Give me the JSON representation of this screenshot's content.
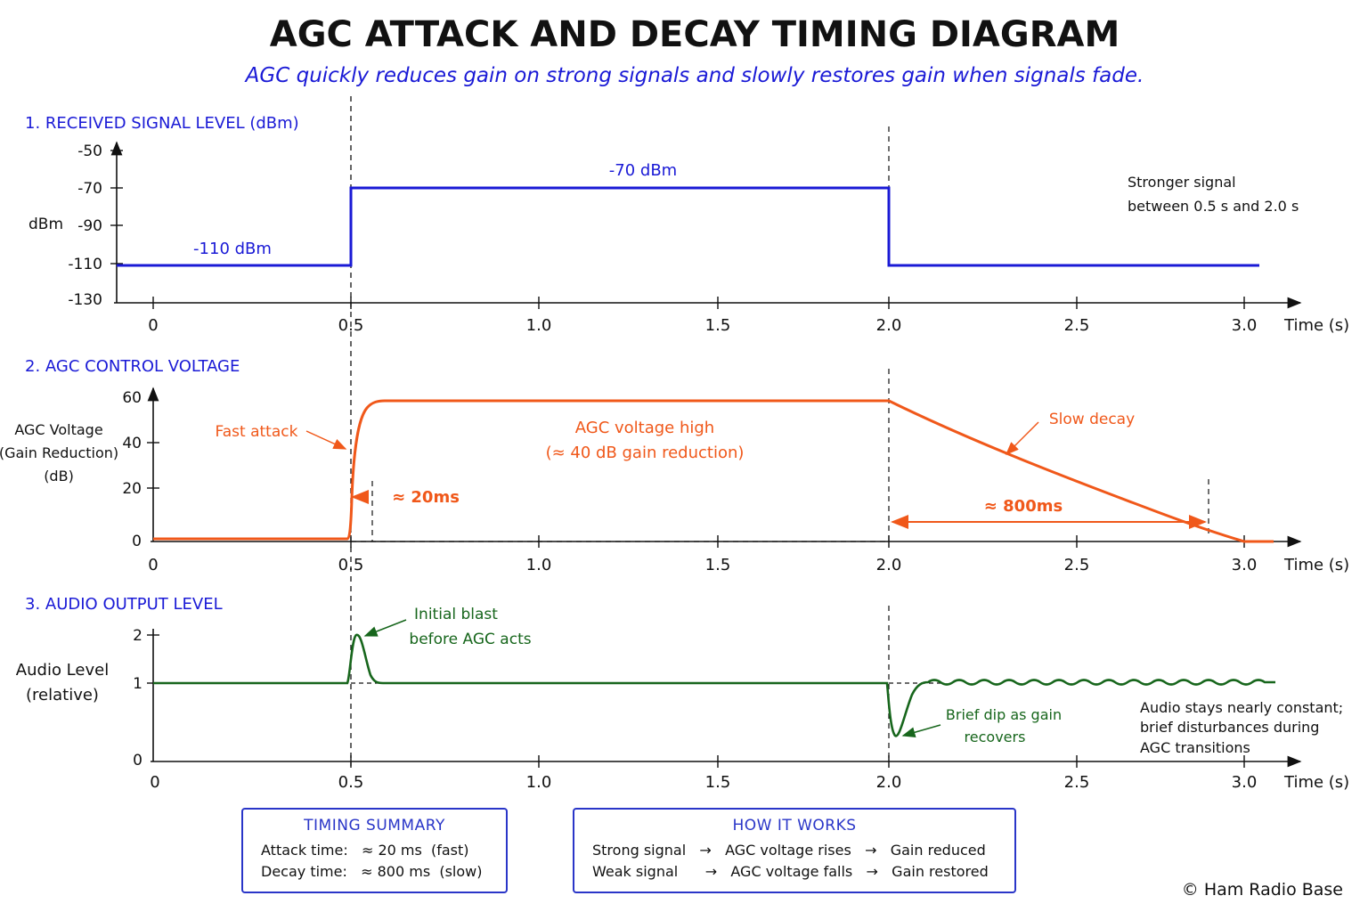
{
  "title": "AGC ATTACK AND DECAY TIMING DIAGRAM",
  "subtitle": "AGC quickly reduces gain on strong signals and slowly restores gain when signals fade.",
  "colors": {
    "blue": "#1a1ad6",
    "orange": "#f0581a",
    "green": "#17661c",
    "axis": "#111111"
  },
  "time_axis": {
    "ticks": [
      "0",
      "0.5",
      "1.0",
      "1.5",
      "2.0",
      "2.5",
      "3.0"
    ],
    "label": "Time (s)"
  },
  "panel1": {
    "heading": "1. RECEIVED SIGNAL LEVEL (dBm)",
    "ylabel": "dBm",
    "yticks": [
      "-50",
      "-70",
      "-90",
      "-110",
      "-130"
    ],
    "low_label": "-110 dBm",
    "high_label": "-70 dBm",
    "note_line1": "Stronger signal",
    "note_line2": "between 0.5 s and 2.0 s"
  },
  "panel2": {
    "heading": "2. AGC CONTROL VOLTAGE",
    "ylabel_line1": "AGC Voltage",
    "ylabel_line2": "(Gain Reduction)",
    "ylabel_line3": "(dB)",
    "yticks": [
      "60",
      "40",
      "20",
      "0"
    ],
    "fast_attack": "Fast attack",
    "high_line1": "AGC voltage high",
    "high_line2": "(≈ 40 dB gain reduction)",
    "attack_time": "≈ 20ms",
    "slow_decay": "Slow decay",
    "decay_time": "≈ 800ms"
  },
  "panel3": {
    "heading": "3. AUDIO OUTPUT LEVEL",
    "ylabel_line1": "Audio Level",
    "ylabel_line2": "(relative)",
    "yticks": [
      "2",
      "1",
      "0"
    ],
    "blast_line1": "Initial blast",
    "blast_line2": "before AGC acts",
    "dip_line1": "Brief dip as gain",
    "dip_line2": "recovers",
    "note_line1": "Audio stays nearly constant;",
    "note_line2": "brief disturbances during",
    "note_line3": "AGC transitions"
  },
  "timing_summary": {
    "heading": "TIMING SUMMARY",
    "attack_row": "Attack time:   ≈ 20 ms  (fast)",
    "decay_row": "Decay time:   ≈ 800 ms  (slow)"
  },
  "how_it_works": {
    "heading": "HOW IT WORKS",
    "row1": "Strong signal   →   AGC voltage rises   →   Gain reduced",
    "row2": "Weak signal      →   AGC voltage falls   →   Gain restored"
  },
  "copyright": "© Ham Radio Base"
}
